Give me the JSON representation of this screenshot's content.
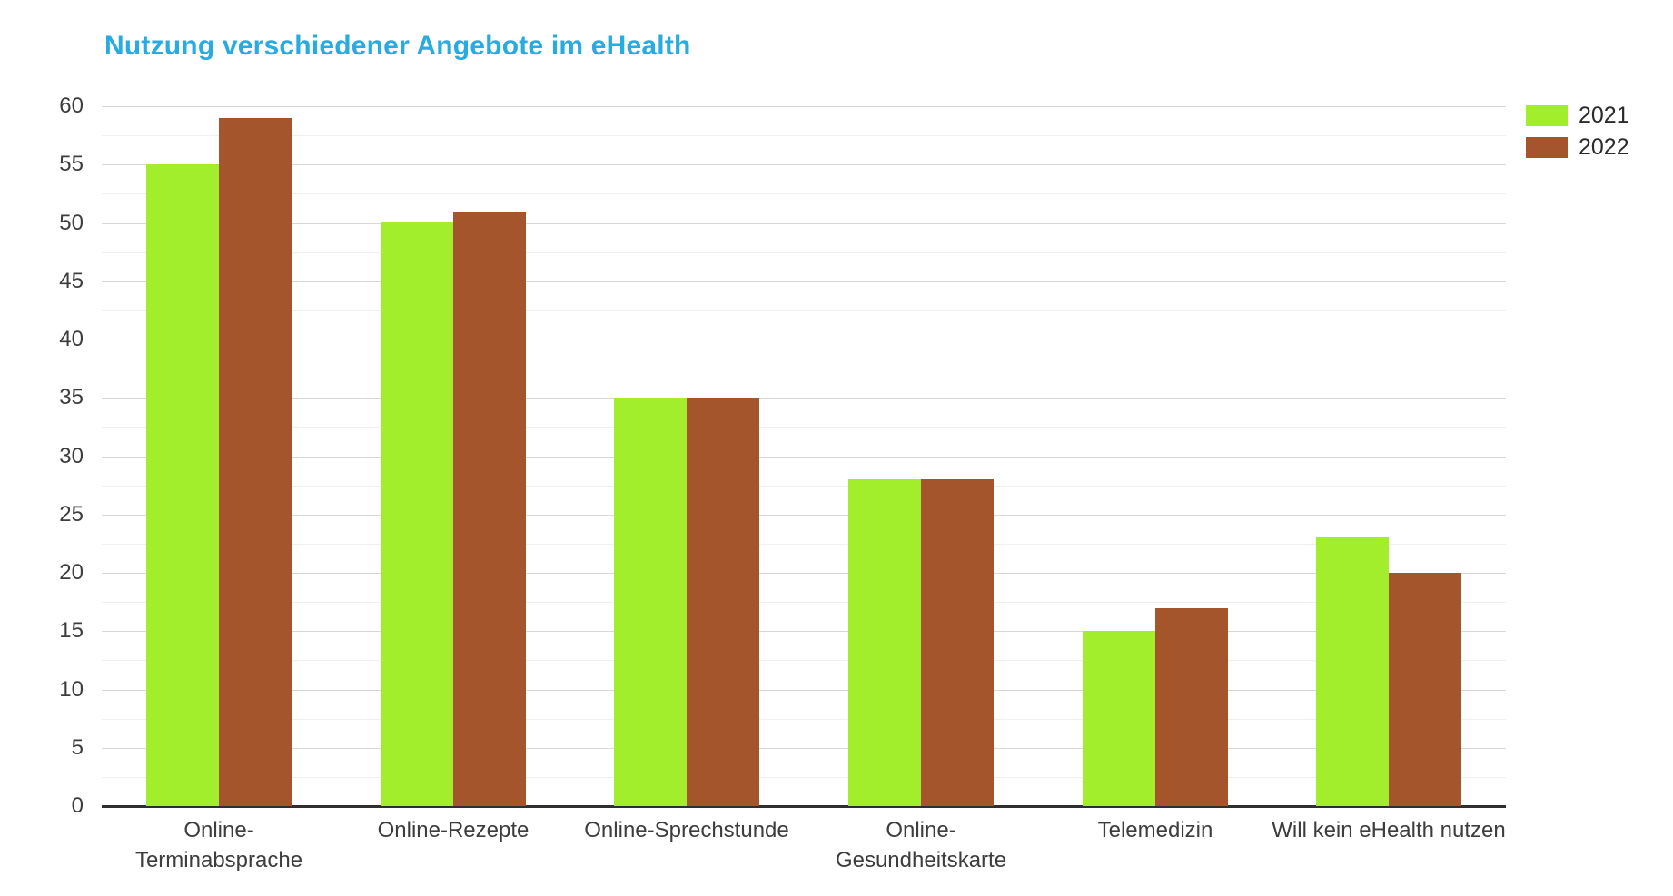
{
  "chart_data": {
    "type": "bar",
    "title": "Nutzung verschiedener Angebote im eHealth",
    "categories": [
      "Online-\nTerminabsprache",
      "Online-Rezepte",
      "Online-Sprechstunde",
      "Online-\nGesundheitskarte",
      "Telemedizin",
      "Will kein eHealth nutzen"
    ],
    "series": [
      {
        "name": "2021",
        "color": "#a2ee2d",
        "values": [
          55,
          50,
          35,
          28,
          15,
          23
        ]
      },
      {
        "name": "2022",
        "color": "#a4552c",
        "values": [
          59,
          51,
          35,
          28,
          17,
          20
        ]
      }
    ],
    "xlabel": "",
    "ylabel": "",
    "ylim": [
      0,
      60
    ],
    "yticks": [
      0,
      5,
      10,
      15,
      20,
      25,
      30,
      35,
      40,
      45,
      50,
      55,
      60
    ],
    "minor_tick_step": 2.5,
    "grid": "horizontal major+minor",
    "legend_position": "top-right",
    "bar_layout": "grouped, touching pairs"
  },
  "colors": {
    "title": "#29abe2",
    "grid_major": "#d8d8d8",
    "grid_minor": "#efefef",
    "axis_line": "#2f2f2f",
    "tick_label": "#3d3d3d",
    "background": "#ffffff"
  }
}
